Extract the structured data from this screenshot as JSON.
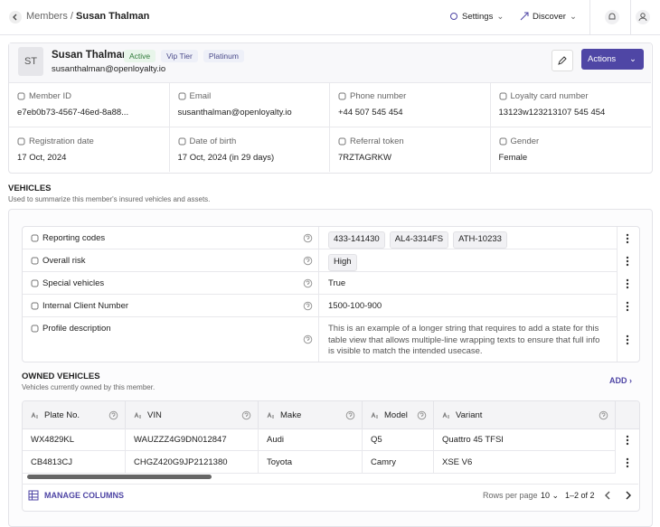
{
  "header": {
    "breadcrumb": [
      "Members",
      "/",
      "Susan Thalman"
    ],
    "nav": [
      "Settings",
      "Discover"
    ]
  },
  "profile": {
    "initials": "ST",
    "name": "Susan Thalman",
    "status": "Active",
    "badges": [
      "Vip Tier",
      "Platinum"
    ],
    "email": "susanthalman@openloyalty.io",
    "actions": "Actions",
    "fields": [
      {
        "label": "Member ID",
        "value": "e7eb0b73-4567-46ed-8a88..."
      },
      {
        "label": "Email",
        "value": "susanthalman@openloyalty.io"
      },
      {
        "label": "Phone number",
        "value": "+44 507 545 454"
      },
      {
        "label": "Loyalty card number",
        "value": "13123w123213107 545 454"
      },
      {
        "label": "Registration date",
        "value": "17 Oct, 2024"
      },
      {
        "label": "Date of birth",
        "value": "17 Oct, 2024 (in 29 days)"
      },
      {
        "label": "Referral token",
        "value": "7RZTAGRKW"
      },
      {
        "label": "Gender",
        "value": "Female"
      }
    ]
  },
  "vehicles": {
    "title": "VEHICLES",
    "subtitle": "Used to summarize this member's insured vehicles and assets.",
    "attributes": [
      {
        "label": "Reporting codes",
        "chips": [
          "433-141430",
          "AL4-3314FS",
          "ATH-10233"
        ]
      },
      {
        "label": "Overall risk",
        "chips": [
          "High"
        ]
      },
      {
        "label": "Special vehicles",
        "value": "True"
      },
      {
        "label": "Internal Client Number",
        "value": "1500-100-900"
      },
      {
        "label": "Profile description",
        "value": "This is an example of a longer string that requires to add a state for this table view that allows multiple-line wrapping texts to ensure that full info is visible to match the intended usecase."
      }
    ]
  },
  "owned": {
    "title": "OWNED VEHICLES",
    "subtitle": "Vehicles currently owned by this member.",
    "add": "ADD",
    "columns": [
      "Plate No.",
      "VIN",
      "Make",
      "Model",
      "Variant"
    ],
    "rows": [
      [
        "WX4829KL",
        "WAUZZZ4G9DN012847",
        "Audi",
        "Q5",
        "Quattro 45 TFSI"
      ],
      [
        "CB4813CJ",
        "CHGZ420G9JP2121380",
        "Toyota",
        "Camry",
        "XSE V6"
      ]
    ],
    "manage": "MANAGE COLUMNS",
    "rows_per_page_label": "Rows per page",
    "rows_per_page": "10",
    "range": "1–2 of 2"
  }
}
